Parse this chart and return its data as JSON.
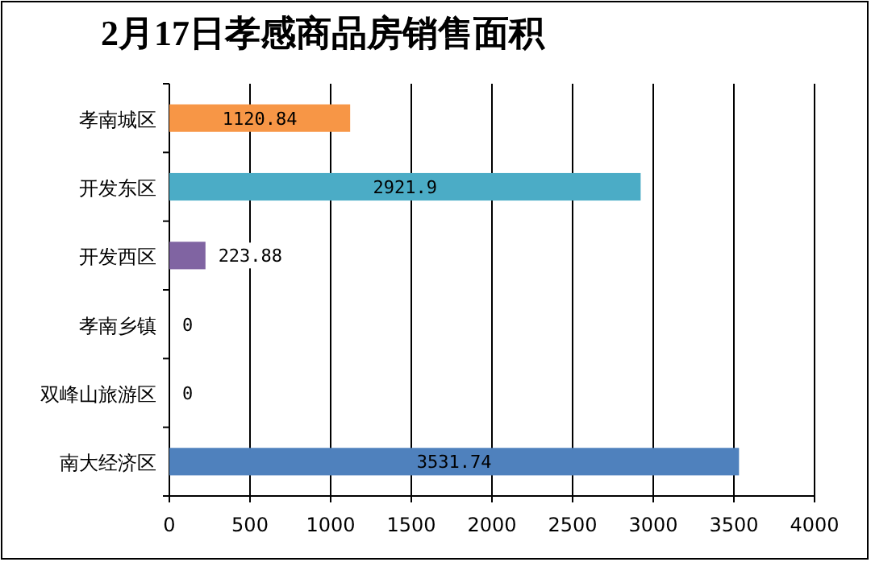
{
  "chart_data": {
    "type": "bar",
    "orientation": "horizontal",
    "title": "2月17日孝感商品房销售面积",
    "categories": [
      "孝南城区",
      "开发东区",
      "开发西区",
      "孝南乡镇",
      "双峰山旅游区",
      "南大经济区"
    ],
    "values": [
      1120.84,
      2921.9,
      223.88,
      0,
      0,
      3531.74
    ],
    "colors": [
      "#f79646",
      "#4bacc6",
      "#8064a2",
      "#9bbb59",
      "#c0504d",
      "#4f81bd"
    ],
    "xlim": [
      0,
      4000
    ],
    "xticks": [
      0,
      500,
      1000,
      1500,
      2000,
      2500,
      3000,
      3500,
      4000
    ],
    "grid": "x",
    "data_labels": true
  }
}
